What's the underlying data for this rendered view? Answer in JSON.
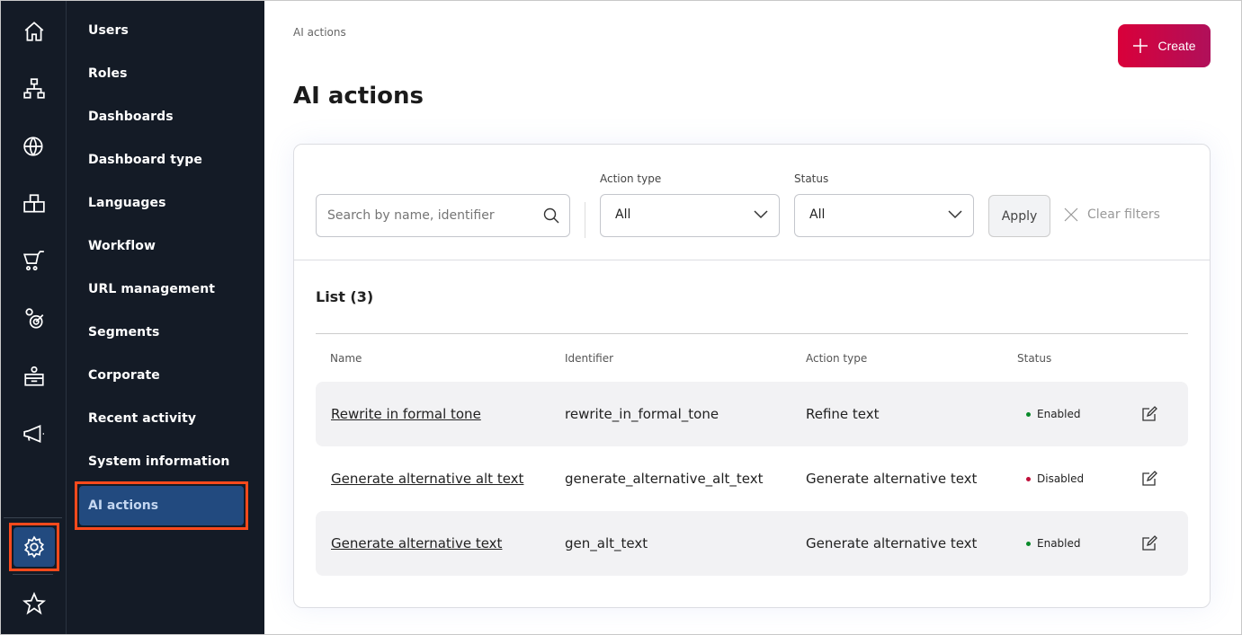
{
  "rail": {
    "icons": [
      "home-icon",
      "sitemap-icon",
      "globe-icon",
      "boxes-icon",
      "cart-icon",
      "target-user-icon",
      "desk-user-icon",
      "megaphone-icon",
      "gear-icon",
      "star-icon"
    ]
  },
  "nav": {
    "items": [
      "Users",
      "Roles",
      "Dashboards",
      "Dashboard type",
      "Languages",
      "Workflow",
      "URL management",
      "Segments",
      "Corporate",
      "Recent activity",
      "System information"
    ],
    "selected": "AI actions"
  },
  "header": {
    "breadcrumb": "AI actions",
    "title": "AI actions",
    "create_label": "Create"
  },
  "filters": {
    "search_placeholder": "Search by name, identifier",
    "action_type_label": "Action type",
    "action_type_value": "All",
    "status_label": "Status",
    "status_value": "All",
    "apply_label": "Apply",
    "clear_label": "Clear filters"
  },
  "list": {
    "title": "List (3)",
    "columns": [
      "Name",
      "Identifier",
      "Action type",
      "Status"
    ],
    "rows": [
      {
        "name": "Rewrite in formal tone",
        "identifier": "rewrite_in_formal_tone",
        "action_type": "Refine text",
        "status": "Enabled"
      },
      {
        "name": "Generate alternative alt text",
        "identifier": "generate_alternative_alt_text",
        "action_type": "Generate alternative text",
        "status": "Disabled"
      },
      {
        "name": "Generate alternative text",
        "identifier": "gen_alt_text",
        "action_type": "Generate alternative text",
        "status": "Enabled"
      }
    ]
  },
  "colors": {
    "accent": "#d9003a",
    "enabled": "#0a8a2a",
    "disabled": "#c0103a",
    "sidebar": "#141b26",
    "selected": "#224a7f",
    "highlight": "#ff4a1c"
  }
}
